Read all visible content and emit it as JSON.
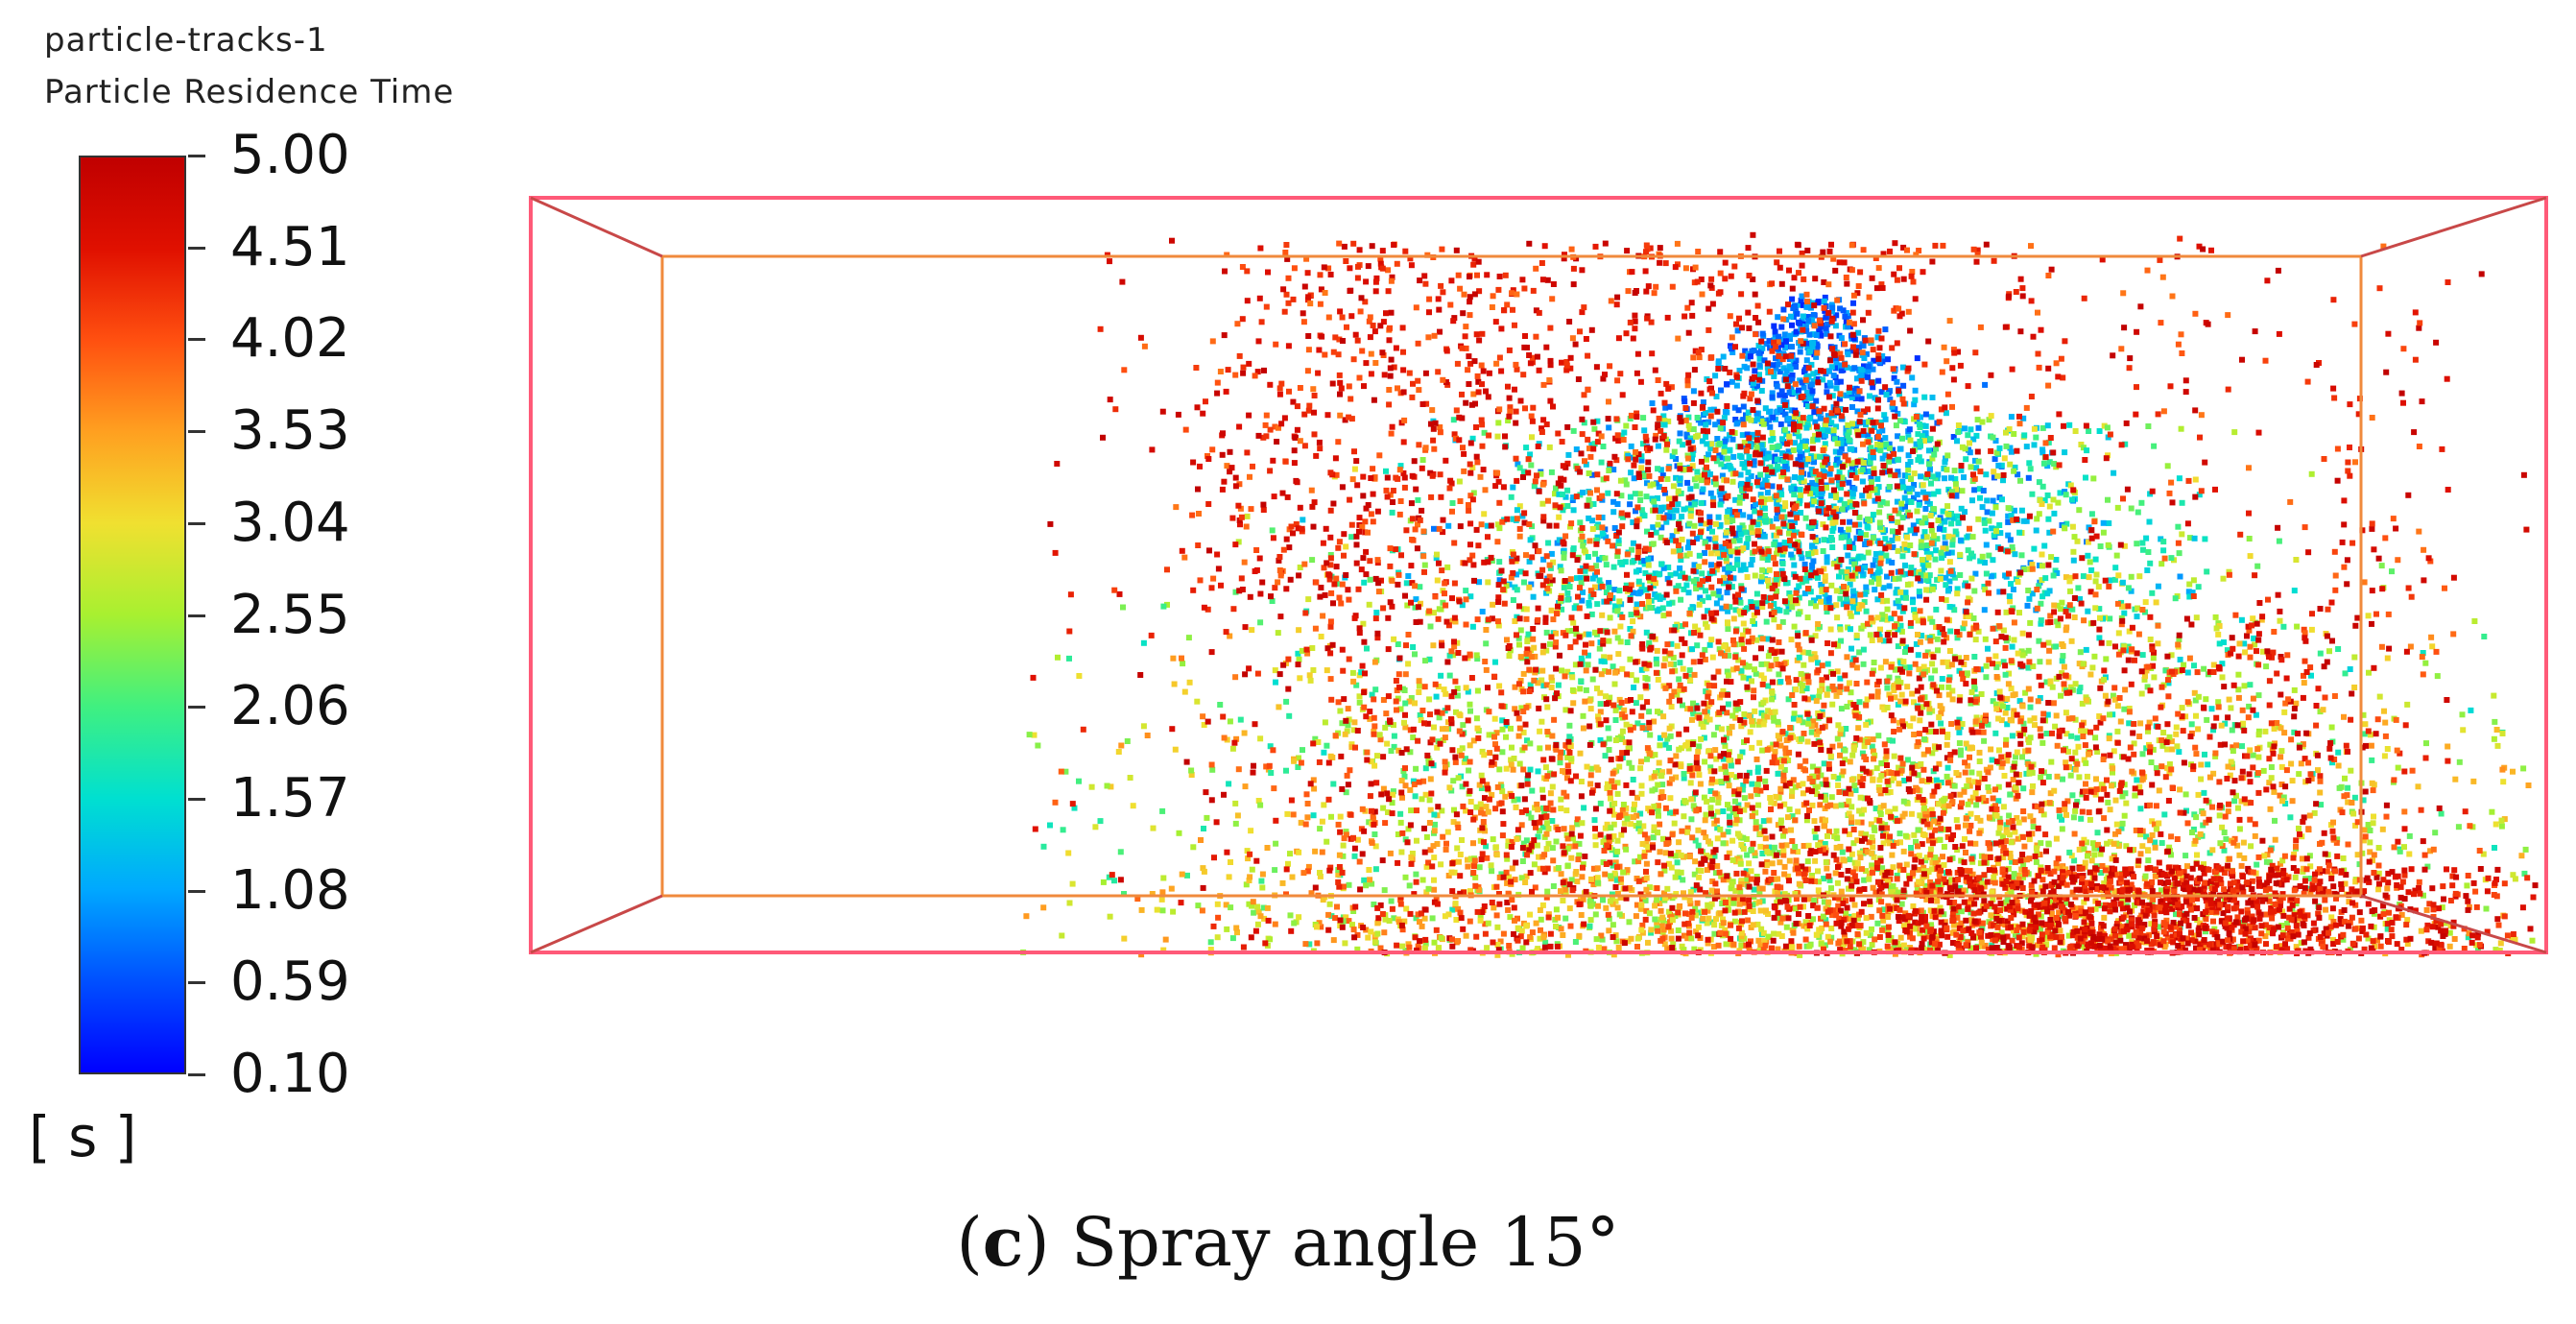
{
  "legend": {
    "object_name": "particle-tracks-1",
    "variable": "Particle Residence Time",
    "unit": "[ s ]",
    "ticks": [
      "5.00",
      "4.51",
      "4.02",
      "3.53",
      "3.04",
      "2.55",
      "2.06",
      "1.57",
      "1.08",
      "0.59",
      "0.10"
    ],
    "range": [
      0.1,
      5.0
    ],
    "colormap": [
      "#0000ff",
      "#0050ff",
      "#00a8ff",
      "#00e0d0",
      "#40f080",
      "#a8f030",
      "#f0e030",
      "#ffa020",
      "#ff5010",
      "#e01000",
      "#c00000"
    ]
  },
  "caption": {
    "letter": "c",
    "text": "Spray angle 15°"
  },
  "colors": {
    "outer_box": "#ff5a78",
    "inner_box": "#f08a3c",
    "background": "#ffffff"
  }
}
